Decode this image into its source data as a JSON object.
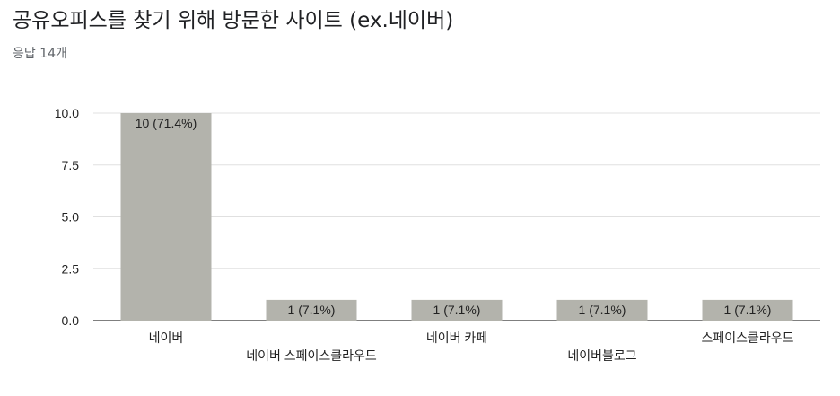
{
  "header": {
    "title": "공유오피스를 찾기 위해 방문한 사이트 (ex.네이버)",
    "response_count": "응답 14개"
  },
  "chart_data": {
    "type": "bar",
    "categories": [
      "네이버",
      "네이버 스페이스클라우드",
      "네이버 카페",
      "네이버블로그",
      "스페이스클라우드"
    ],
    "values": [
      10,
      1,
      1,
      1,
      1
    ],
    "data_labels": [
      "10 (71.4%)",
      "1 (7.1%)",
      "1 (7.1%)",
      "1 (7.1%)",
      "1 (7.1%)"
    ],
    "yticks": [
      "0.0",
      "2.5",
      "5.0",
      "7.5",
      "10.0"
    ],
    "ylim": [
      0,
      10
    ],
    "grid": true,
    "colors": {
      "bar": "#b3b3ac",
      "grid": "#e0e0e0",
      "axis": "#333333"
    }
  }
}
